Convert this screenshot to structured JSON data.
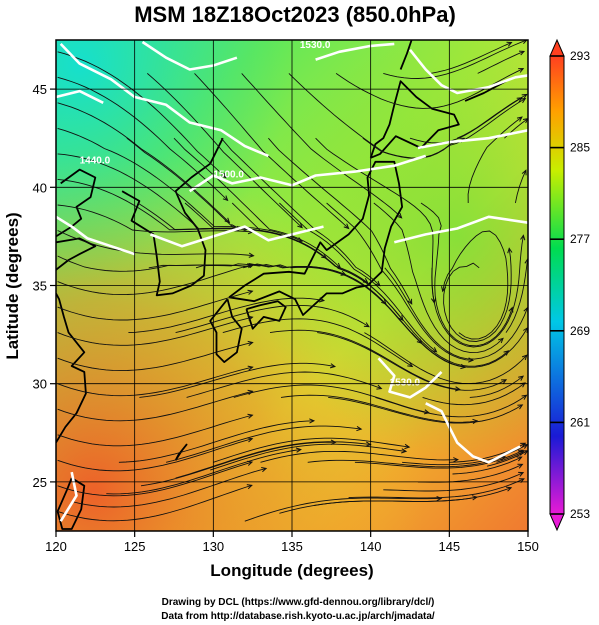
{
  "title": "MSM 18Z18Oct2023 (850.0hPa)",
  "xlabel": "Longitude (degrees)",
  "ylabel": "Latitude  (degrees)",
  "map": {
    "lon_range": [
      120,
      150
    ],
    "lat_range": [
      22.5,
      47.5
    ],
    "x_ticks": [
      {
        "value": 120,
        "label": "120"
      },
      {
        "value": 125,
        "label": "125"
      },
      {
        "value": 130,
        "label": "130"
      },
      {
        "value": 135,
        "label": "135"
      },
      {
        "value": 140,
        "label": "140"
      },
      {
        "value": 145,
        "label": "145"
      },
      {
        "value": 150,
        "label": "150"
      }
    ],
    "y_ticks": [
      {
        "value": 25,
        "label": "25"
      },
      {
        "value": 30,
        "label": "30"
      },
      {
        "value": 35,
        "label": "35"
      },
      {
        "value": 40,
        "label": "40"
      },
      {
        "value": 45,
        "label": "45"
      }
    ],
    "grid": true,
    "shading": "temperature (K)",
    "overlay": [
      "streamlines",
      "geopotential height contours (white)"
    ],
    "contour_labels": [
      {
        "text": "1440.0",
        "lon": 121.5,
        "lat": 41.2
      },
      {
        "text": "1530.0",
        "lon": 135.5,
        "lat": 47.1
      },
      {
        "text": "1500.0",
        "lon": 130.0,
        "lat": 40.5
      },
      {
        "text": "1530.0",
        "lon": 141.2,
        "lat": 29.9
      }
    ]
  },
  "colorbar": {
    "min": 253,
    "max": 293,
    "labels": [
      {
        "value": 293,
        "label": "293"
      },
      {
        "value": 285,
        "label": "285"
      },
      {
        "value": 277,
        "label": "277"
      },
      {
        "value": 269,
        "label": "269"
      },
      {
        "value": 261,
        "label": "261"
      },
      {
        "value": 253,
        "label": "253"
      }
    ],
    "colors": [
      "#e81ad6",
      "#1a1ad6",
      "#00c8e6",
      "#00dc50",
      "#c8ee00",
      "#ffa000",
      "#ff4020"
    ]
  },
  "credits": {
    "line1": "Drawing by DCL (https://www.gfd-dennou.org/library/dcl/)",
    "line2": "Data from http://database.rish.kyoto-u.ac.jp/arch/jmadata/"
  }
}
